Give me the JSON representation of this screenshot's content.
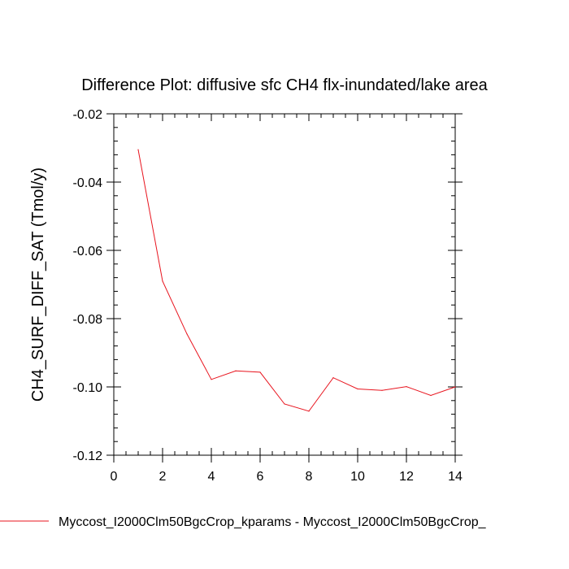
{
  "chart_data": {
    "type": "line",
    "title": "Difference Plot: diffusive sfc CH4 flx-inundated/lake area",
    "xlabel": "",
    "ylabel": "CH4_SURF_DIFF_SAT  (Tmol/y)",
    "xlim": [
      0,
      14
    ],
    "ylim": [
      -0.12,
      -0.02
    ],
    "x_ticks": [
      0,
      2,
      4,
      6,
      8,
      10,
      12,
      14
    ],
    "x_tick_labels": [
      "0",
      "2",
      "4",
      "6",
      "8",
      "10",
      "12",
      "14"
    ],
    "y_ticks": [
      -0.02,
      -0.04,
      -0.06,
      -0.08,
      -0.1,
      -0.12
    ],
    "y_tick_labels": [
      "-0.02",
      "-0.04",
      "-0.06",
      "-0.08",
      "-0.10",
      "-0.12"
    ],
    "grid": false,
    "legend_position": "bottom",
    "series": [
      {
        "name": "Myccost_I2000Clm50BgcCrop_kparams - Myccost_I2000Clm50BgcCrop_",
        "color": "#e8141e",
        "x": [
          1,
          2,
          3,
          4,
          5,
          6,
          7,
          8,
          9,
          10,
          11,
          12,
          13,
          14
        ],
        "y": [
          -0.0305,
          -0.069,
          -0.0845,
          -0.0978,
          -0.0953,
          -0.0957,
          -0.105,
          -0.1071,
          -0.0973,
          -0.1006,
          -0.101,
          -0.0999,
          -0.1025,
          -0.1
        ]
      }
    ]
  }
}
